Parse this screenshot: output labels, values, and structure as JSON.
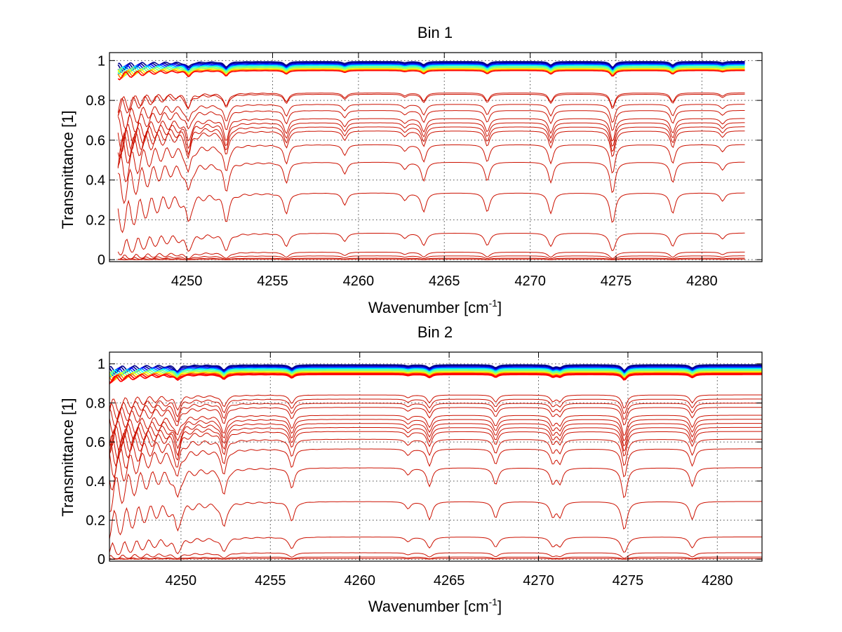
{
  "colors": {
    "background": "#ffffff",
    "axis": "#000000",
    "grid": "#000000",
    "absorbing_series": "#cc1100",
    "colormap": [
      "#00008f",
      "#0000ff",
      "#0080ff",
      "#00ffff",
      "#80ff80",
      "#ffff00",
      "#ff8000",
      "#ff0000"
    ]
  },
  "chart_data": [
    {
      "type": "line",
      "title": "Bin 1",
      "xlabel": "Wavenumber [cm",
      "xlabel_sup": "-1",
      "xlabel_end": "]",
      "ylabel": "Transmittance [1]",
      "xlim": [
        4245.5,
        4283.5
      ],
      "ylim": [
        -0.01,
        1.04
      ],
      "x_range": [
        4246,
        4282.5
      ],
      "xticks": [
        4250,
        4255,
        4260,
        4265,
        4270,
        4275,
        4280
      ],
      "xtick_labels": [
        "4250",
        "4255",
        "4260",
        "4265",
        "4270",
        "4275",
        "4280"
      ],
      "yticks": [
        0,
        0.2,
        0.4,
        0.6,
        0.8,
        1
      ],
      "ytick_labels": [
        "0",
        "0.2",
        "0.4",
        "0.6",
        "0.8",
        "1"
      ],
      "grid": true,
      "absorption_lines": [
        {
          "center": 4250.1,
          "strength": 0.3
        },
        {
          "center": 4252.3,
          "strength": 0.32
        },
        {
          "center": 4255.8,
          "strength": 0.22
        },
        {
          "center": 4259.2,
          "strength": 0.12
        },
        {
          "center": 4262.7,
          "strength": 0.07
        },
        {
          "center": 4263.8,
          "strength": 0.2
        },
        {
          "center": 4267.5,
          "strength": 0.2
        },
        {
          "center": 4271.2,
          "strength": 0.22
        },
        {
          "center": 4274.8,
          "strength": 0.36
        },
        {
          "center": 4278.3,
          "strength": 0.22
        },
        {
          "center": 4281.2,
          "strength": 0.08
        }
      ],
      "series_baselines": [
        0.995,
        0.99,
        0.985,
        0.98,
        0.975,
        0.97,
        0.965,
        0.96,
        0.955,
        0.95,
        0.855,
        0.85,
        0.8,
        0.77,
        0.73,
        0.71,
        0.69,
        0.67,
        0.6,
        0.51,
        0.35,
        0.14,
        0.04,
        0.02,
        0.008,
        0.003
      ]
    },
    {
      "type": "line",
      "title": "Bin 2",
      "xlabel": "Wavenumber [cm",
      "xlabel_sup": "-1",
      "xlabel_end": "]",
      "ylabel": "Transmittance [1]",
      "xlim": [
        4246,
        4282.5
      ],
      "ylim": [
        -0.01,
        1.06
      ],
      "x_range": [
        4246,
        4282.5
      ],
      "xticks": [
        4250,
        4255,
        4260,
        4265,
        4270,
        4275,
        4280
      ],
      "xtick_labels": [
        "4250",
        "4255",
        "4260",
        "4265",
        "4270",
        "4275",
        "4280"
      ],
      "yticks": [
        0,
        0.2,
        0.4,
        0.6,
        0.8,
        1
      ],
      "ytick_labels": [
        "0",
        "0.2",
        "0.4",
        "0.6",
        "0.8",
        "1"
      ],
      "grid": true,
      "absorption_lines": [
        {
          "center": 4249.8,
          "strength": 0.32
        },
        {
          "center": 4252.4,
          "strength": 0.3
        },
        {
          "center": 4256.2,
          "strength": 0.22
        },
        {
          "center": 4262.7,
          "strength": 0.07
        },
        {
          "center": 4263.9,
          "strength": 0.2
        },
        {
          "center": 4267.6,
          "strength": 0.18
        },
        {
          "center": 4270.8,
          "strength": 0.16
        },
        {
          "center": 4271.2,
          "strength": 0.16
        },
        {
          "center": 4274.8,
          "strength": 0.36
        },
        {
          "center": 4278.6,
          "strength": 0.2
        }
      ],
      "series_baselines": [
        0.995,
        0.99,
        0.985,
        0.98,
        0.975,
        0.97,
        0.965,
        0.96,
        0.955,
        0.95,
        0.945,
        0.86,
        0.84,
        0.82,
        0.8,
        0.76,
        0.74,
        0.72,
        0.7,
        0.68,
        0.64,
        0.59,
        0.49,
        0.31,
        0.12,
        0.035,
        0.012,
        0.004
      ]
    }
  ]
}
